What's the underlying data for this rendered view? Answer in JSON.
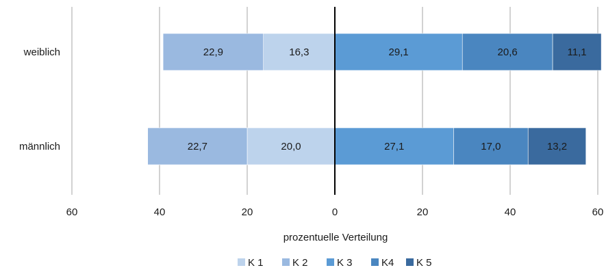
{
  "chart_data": {
    "type": "bar",
    "orientation": "horizontal-diverging",
    "categories": [
      "weiblich",
      "männlich"
    ],
    "series": [
      {
        "name": "K 1",
        "values": [
          16.3,
          20.0
        ],
        "labels": [
          "16,3",
          "20,0"
        ],
        "side": "left",
        "color": "#bdd3ec"
      },
      {
        "name": "K 2",
        "values": [
          22.9,
          22.7
        ],
        "labels": [
          "22,9",
          "22,7"
        ],
        "side": "left",
        "color": "#9ab9e0"
      },
      {
        "name": "K 3",
        "values": [
          29.1,
          27.1
        ],
        "labels": [
          "29,1",
          "27,1"
        ],
        "side": "right",
        "color": "#5b9bd5"
      },
      {
        "name": "K4",
        "values": [
          20.6,
          17.0
        ],
        "labels": [
          "20,6",
          "17,0"
        ],
        "side": "right",
        "color": "#4a86c0"
      },
      {
        "name": "K 5",
        "values": [
          11.1,
          13.2
        ],
        "labels": [
          "11,1",
          "13,2"
        ],
        "side": "right",
        "color": "#3a6a9e"
      }
    ],
    "xlabel": "prozentuelle Verteilung",
    "xlim": [
      -60,
      60
    ],
    "xticks": [
      -60,
      -40,
      -20,
      0,
      20,
      40,
      60
    ],
    "xtick_labels": [
      "60",
      "40",
      "20",
      "0",
      "20",
      "40",
      "60"
    ],
    "grid": "vertical",
    "legend_position": "bottom"
  }
}
